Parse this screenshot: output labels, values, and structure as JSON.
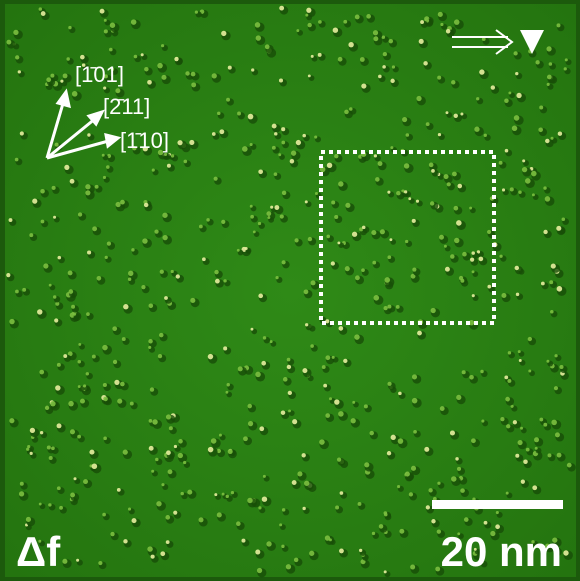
{
  "labels": {
    "directions": [
      "[1̄01]",
      "[2̄11]",
      "[1̄10]"
    ],
    "signal": "Δf",
    "scale_bar": "20 nm"
  }
}
